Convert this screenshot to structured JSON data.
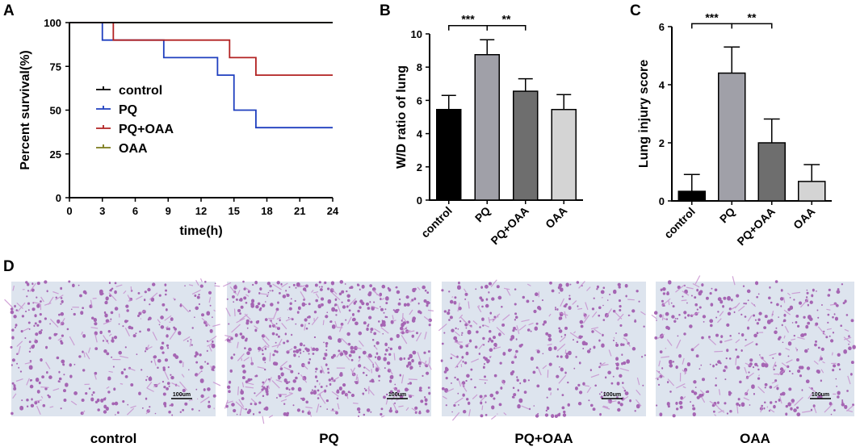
{
  "colors": {
    "control": "#000000",
    "PQ": "#1f3fbf",
    "PQ+OAA": "#b22222",
    "OAA": "#7a7a1a",
    "bar_control": "#000000",
    "bar_PQ": "#a0a0a8",
    "bar_PQOAA": "#6e6e6e",
    "bar_OAA": "#d4d4d4",
    "tissue_bg": "#dde4ee",
    "tissue_cell": "#9b4fa8"
  },
  "chart_data": [
    {
      "panel": "A",
      "type": "line",
      "subtype": "kaplan-meier",
      "xlabel": "time(h)",
      "ylabel": "Percent survival(%)",
      "xlim": [
        0,
        24
      ],
      "ylim": [
        0,
        100
      ],
      "xticks": [
        0,
        3,
        6,
        9,
        12,
        15,
        18,
        21,
        24
      ],
      "yticks": [
        0,
        25,
        50,
        75,
        100
      ],
      "legend_position": "center-left",
      "series": [
        {
          "name": "control",
          "color_key": "control",
          "steps": [
            [
              0,
              100
            ],
            [
              24,
              100
            ]
          ]
        },
        {
          "name": "PQ",
          "color_key": "PQ",
          "steps": [
            [
              0,
              100
            ],
            [
              3,
              100
            ],
            [
              3,
              90
            ],
            [
              8.6,
              90
            ],
            [
              8.6,
              80
            ],
            [
              13.5,
              80
            ],
            [
              13.5,
              70
            ],
            [
              15,
              70
            ],
            [
              15,
              50
            ],
            [
              17,
              50
            ],
            [
              17,
              40
            ],
            [
              24,
              40
            ]
          ]
        },
        {
          "name": "PQ+OAA",
          "color_key": "PQ+OAA",
          "steps": [
            [
              0,
              100
            ],
            [
              4,
              100
            ],
            [
              4,
              90
            ],
            [
              14.6,
              90
            ],
            [
              14.6,
              80
            ],
            [
              17,
              80
            ],
            [
              17,
              70
            ],
            [
              24,
              70
            ]
          ]
        },
        {
          "name": "OAA",
          "color_key": "OAA",
          "steps": [
            [
              0,
              100
            ],
            [
              24,
              100
            ]
          ]
        }
      ]
    },
    {
      "panel": "B",
      "type": "bar",
      "ylabel": "W/D ratio of lung",
      "ylim": [
        0,
        10
      ],
      "yticks": [
        0,
        2,
        4,
        6,
        8,
        10
      ],
      "categories": [
        "control",
        "PQ",
        "PQ+OAA",
        "OAA"
      ],
      "values": [
        5.45,
        8.75,
        6.55,
        5.45
      ],
      "errors": [
        0.85,
        0.9,
        0.75,
        0.9
      ],
      "bar_color_keys": [
        "bar_control",
        "bar_PQ",
        "bar_PQOAA",
        "bar_OAA"
      ],
      "significance": [
        {
          "from": 0,
          "to": 1,
          "label": "***",
          "y": 10.5
        },
        {
          "from": 1,
          "to": 2,
          "label": "**",
          "y": 10.5
        }
      ]
    },
    {
      "panel": "C",
      "type": "bar",
      "ylabel": "Lung injury score",
      "ylim": [
        0,
        6
      ],
      "yticks": [
        0,
        2,
        4,
        6
      ],
      "categories": [
        "control",
        "PQ",
        "PQ+OAA",
        "OAA"
      ],
      "values": [
        0.33,
        4.4,
        2.0,
        0.67
      ],
      "errors": [
        0.58,
        0.9,
        0.82,
        0.58
      ],
      "bar_color_keys": [
        "bar_control",
        "bar_PQ",
        "bar_PQOAA",
        "bar_OAA"
      ],
      "significance": [
        {
          "from": 0,
          "to": 1,
          "label": "***",
          "y": 6.1
        },
        {
          "from": 1,
          "to": 2,
          "label": "**",
          "y": 6.1
        }
      ]
    }
  ],
  "panel_letters": {
    "A": "A",
    "B": "B",
    "C": "C",
    "D": "D"
  },
  "micrographs": {
    "captions": [
      "control",
      "PQ",
      "PQ+OAA",
      "OAA"
    ],
    "scale_label": "100um"
  }
}
